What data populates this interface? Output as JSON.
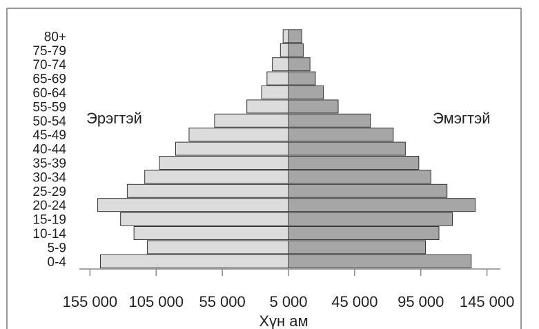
{
  "chart_data": {
    "type": "bar",
    "orientation": "horizontal",
    "layout": "population-pyramid",
    "title": "",
    "xlabel": "Хүн ам",
    "ylabel": "",
    "categories": [
      "0-4",
      "5-9",
      "10-14",
      "15-19",
      "20-24",
      "25-29",
      "30-34",
      "35-39",
      "40-44",
      "45-49",
      "50-54",
      "55-59",
      "60-64",
      "65-69",
      "70-74",
      "75-79",
      "80+"
    ],
    "series": [
      {
        "name": "Эрэгтэй",
        "side": "left",
        "color": "#dcdcdc",
        "values": [
          140000,
          105000,
          115000,
          125000,
          142000,
          120000,
          107000,
          96000,
          84000,
          74000,
          55000,
          31000,
          20000,
          16000,
          12000,
          6000,
          4000
        ]
      },
      {
        "name": "Эмэгтэй",
        "side": "right",
        "color": "#a6a6a6",
        "values": [
          136000,
          102000,
          112000,
          122000,
          139000,
          118000,
          106000,
          97000,
          87000,
          78000,
          61000,
          37000,
          26000,
          20000,
          16000,
          11000,
          10000
        ]
      }
    ],
    "x_tick_labels": [
      "155 000",
      "105 000",
      "55 000",
      "5 000",
      "45 000",
      "95 000",
      "145 000"
    ],
    "xlim": [
      -150000,
      150000
    ],
    "grid": false,
    "legend": "series names printed beside the bars"
  }
}
